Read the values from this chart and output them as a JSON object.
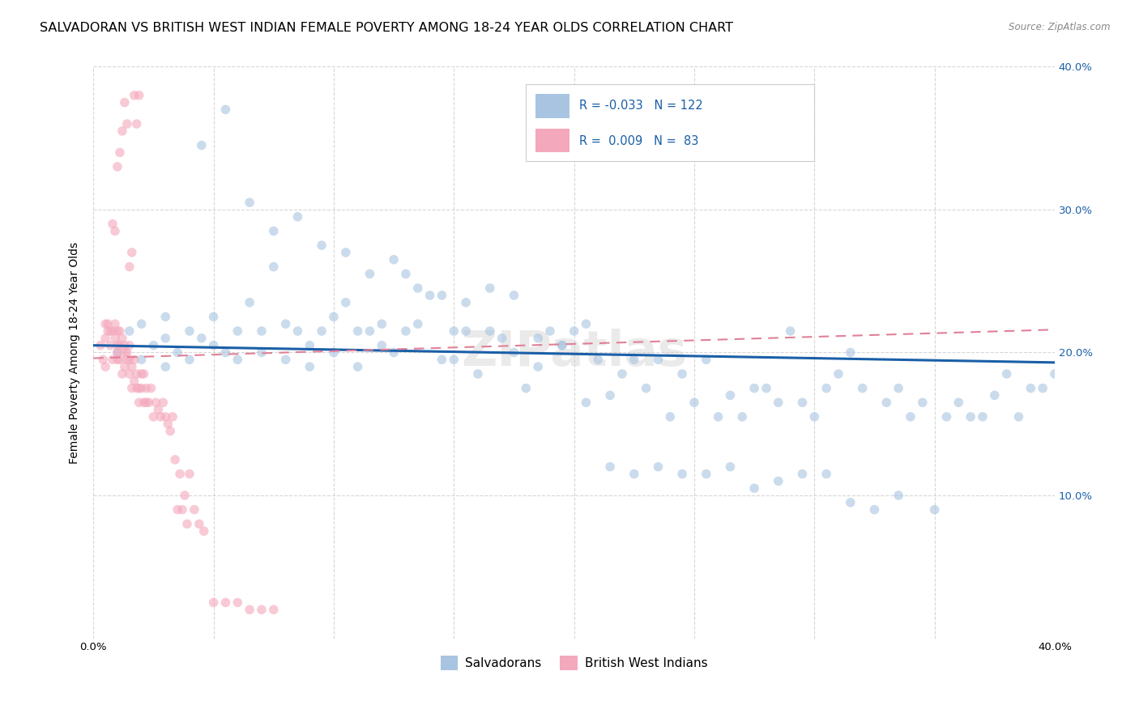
{
  "title": "SALVADORAN VS BRITISH WEST INDIAN FEMALE POVERTY AMONG 18-24 YEAR OLDS CORRELATION CHART",
  "source": "Source: ZipAtlas.com",
  "ylabel": "Female Poverty Among 18-24 Year Olds",
  "xlim": [
    0,
    0.4
  ],
  "ylim": [
    0,
    0.4
  ],
  "blue_r": -0.033,
  "blue_n": 122,
  "pink_r": 0.009,
  "pink_n": 83,
  "blue_color": "#a8c4e0",
  "pink_color": "#f4a8bc",
  "blue_line_color": "#1a5fa8",
  "pink_line_color": "#e08098",
  "blue_line_y0": 0.205,
  "blue_line_y1": 0.193,
  "pink_line_y0": 0.196,
  "pink_line_y1": 0.216,
  "marker_size": 70,
  "marker_alpha": 0.6,
  "background_color": "#ffffff",
  "grid_color": "#cccccc",
  "title_fontsize": 11.5,
  "ylabel_fontsize": 10,
  "tick_fontsize": 9.5,
  "legend_text_color": "#1a5fa8",
  "watermark": "ZIPatlas",
  "blue_scatter_x": [
    0.01,
    0.015,
    0.02,
    0.02,
    0.025,
    0.03,
    0.03,
    0.03,
    0.035,
    0.04,
    0.04,
    0.045,
    0.05,
    0.05,
    0.055,
    0.06,
    0.06,
    0.065,
    0.07,
    0.07,
    0.075,
    0.08,
    0.08,
    0.085,
    0.09,
    0.09,
    0.095,
    0.1,
    0.1,
    0.105,
    0.11,
    0.11,
    0.115,
    0.12,
    0.12,
    0.125,
    0.13,
    0.13,
    0.135,
    0.14,
    0.145,
    0.15,
    0.15,
    0.155,
    0.16,
    0.165,
    0.17,
    0.175,
    0.18,
    0.185,
    0.19,
    0.195,
    0.2,
    0.205,
    0.21,
    0.215,
    0.22,
    0.225,
    0.23,
    0.235,
    0.24,
    0.245,
    0.25,
    0.255,
    0.26,
    0.265,
    0.27,
    0.275,
    0.28,
    0.285,
    0.29,
    0.295,
    0.3,
    0.305,
    0.31,
    0.315,
    0.32,
    0.33,
    0.335,
    0.34,
    0.345,
    0.35,
    0.355,
    0.36,
    0.365,
    0.37,
    0.375,
    0.38,
    0.385,
    0.39,
    0.395,
    0.4,
    0.045,
    0.055,
    0.065,
    0.075,
    0.085,
    0.095,
    0.105,
    0.115,
    0.125,
    0.135,
    0.145,
    0.155,
    0.165,
    0.175,
    0.185,
    0.195,
    0.205,
    0.215,
    0.225,
    0.235,
    0.245,
    0.255,
    0.265,
    0.275,
    0.285,
    0.295,
    0.305,
    0.315,
    0.325,
    0.335
  ],
  "blue_scatter_y": [
    0.2,
    0.215,
    0.195,
    0.22,
    0.205,
    0.19,
    0.21,
    0.225,
    0.2,
    0.215,
    0.195,
    0.21,
    0.205,
    0.225,
    0.2,
    0.215,
    0.195,
    0.235,
    0.215,
    0.2,
    0.26,
    0.22,
    0.195,
    0.215,
    0.205,
    0.19,
    0.215,
    0.2,
    0.225,
    0.235,
    0.215,
    0.19,
    0.215,
    0.205,
    0.22,
    0.2,
    0.255,
    0.215,
    0.22,
    0.24,
    0.195,
    0.195,
    0.215,
    0.215,
    0.185,
    0.215,
    0.21,
    0.2,
    0.175,
    0.19,
    0.215,
    0.205,
    0.215,
    0.165,
    0.195,
    0.17,
    0.185,
    0.195,
    0.175,
    0.195,
    0.155,
    0.185,
    0.165,
    0.195,
    0.155,
    0.17,
    0.155,
    0.175,
    0.175,
    0.165,
    0.215,
    0.165,
    0.155,
    0.175,
    0.185,
    0.2,
    0.175,
    0.165,
    0.175,
    0.155,
    0.165,
    0.09,
    0.155,
    0.165,
    0.155,
    0.155,
    0.17,
    0.185,
    0.155,
    0.175,
    0.175,
    0.185,
    0.345,
    0.37,
    0.305,
    0.285,
    0.295,
    0.275,
    0.27,
    0.255,
    0.265,
    0.245,
    0.24,
    0.235,
    0.245,
    0.24,
    0.21,
    0.205,
    0.22,
    0.12,
    0.115,
    0.12,
    0.115,
    0.115,
    0.12,
    0.105,
    0.11,
    0.115,
    0.115,
    0.095,
    0.09,
    0.1
  ],
  "pink_scatter_x": [
    0.003,
    0.004,
    0.005,
    0.005,
    0.005,
    0.006,
    0.006,
    0.007,
    0.007,
    0.008,
    0.008,
    0.009,
    0.009,
    0.01,
    0.01,
    0.01,
    0.01,
    0.011,
    0.011,
    0.011,
    0.012,
    0.012,
    0.013,
    0.013,
    0.013,
    0.014,
    0.014,
    0.015,
    0.015,
    0.015,
    0.016,
    0.016,
    0.017,
    0.017,
    0.018,
    0.018,
    0.019,
    0.019,
    0.02,
    0.02,
    0.021,
    0.021,
    0.022,
    0.022,
    0.023,
    0.024,
    0.025,
    0.026,
    0.027,
    0.028,
    0.029,
    0.03,
    0.031,
    0.032,
    0.033,
    0.034,
    0.035,
    0.036,
    0.037,
    0.038,
    0.039,
    0.04,
    0.042,
    0.044,
    0.046,
    0.05,
    0.055,
    0.06,
    0.065,
    0.07,
    0.075,
    0.008,
    0.009,
    0.01,
    0.011,
    0.012,
    0.013,
    0.014,
    0.015,
    0.016,
    0.017,
    0.018,
    0.019
  ],
  "pink_scatter_y": [
    0.205,
    0.195,
    0.22,
    0.21,
    0.19,
    0.215,
    0.22,
    0.215,
    0.205,
    0.215,
    0.195,
    0.21,
    0.22,
    0.2,
    0.215,
    0.205,
    0.195,
    0.205,
    0.215,
    0.195,
    0.21,
    0.185,
    0.19,
    0.205,
    0.2,
    0.195,
    0.2,
    0.185,
    0.195,
    0.205,
    0.175,
    0.19,
    0.18,
    0.195,
    0.175,
    0.185,
    0.175,
    0.165,
    0.175,
    0.185,
    0.165,
    0.185,
    0.165,
    0.175,
    0.165,
    0.175,
    0.155,
    0.165,
    0.16,
    0.155,
    0.165,
    0.155,
    0.15,
    0.145,
    0.155,
    0.125,
    0.09,
    0.115,
    0.09,
    0.1,
    0.08,
    0.115,
    0.09,
    0.08,
    0.075,
    0.025,
    0.025,
    0.025,
    0.02,
    0.02,
    0.02,
    0.29,
    0.285,
    0.33,
    0.34,
    0.355,
    0.375,
    0.36,
    0.26,
    0.27,
    0.38,
    0.36,
    0.38
  ]
}
